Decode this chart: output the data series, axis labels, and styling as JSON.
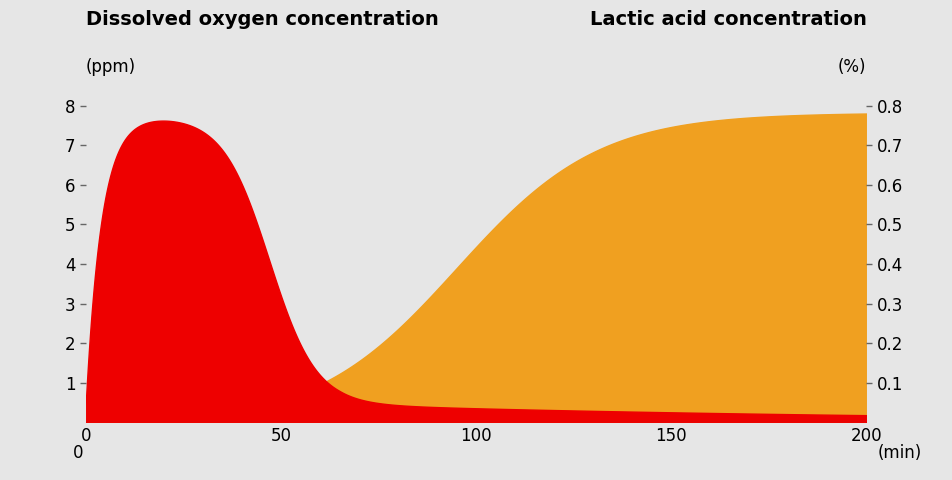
{
  "title_left": "Dissolved oxygen concentration",
  "subtitle_left": "(ppm)",
  "title_right": "Lactic acid concentration",
  "subtitle_right": "(%)",
  "xlabel_suffix": "(min)",
  "background_color": "#e6e6e6",
  "plot_bg_color": "#e6e6e6",
  "red_color": "#ee0000",
  "orange_color": "#f0a020",
  "left_ylim": [
    0,
    8
  ],
  "right_ylim": [
    0,
    0.8
  ],
  "xlim": [
    0,
    200
  ],
  "left_yticks": [
    1,
    2,
    3,
    4,
    5,
    6,
    7,
    8
  ],
  "right_yticks": [
    0.1,
    0.2,
    0.3,
    0.4,
    0.5,
    0.6,
    0.7,
    0.8
  ],
  "xticks": [
    0,
    50,
    100,
    150,
    200
  ],
  "title_fontsize": 14,
  "subtitle_fontsize": 12,
  "tick_fontsize": 12,
  "axis_label_fontsize": 12
}
